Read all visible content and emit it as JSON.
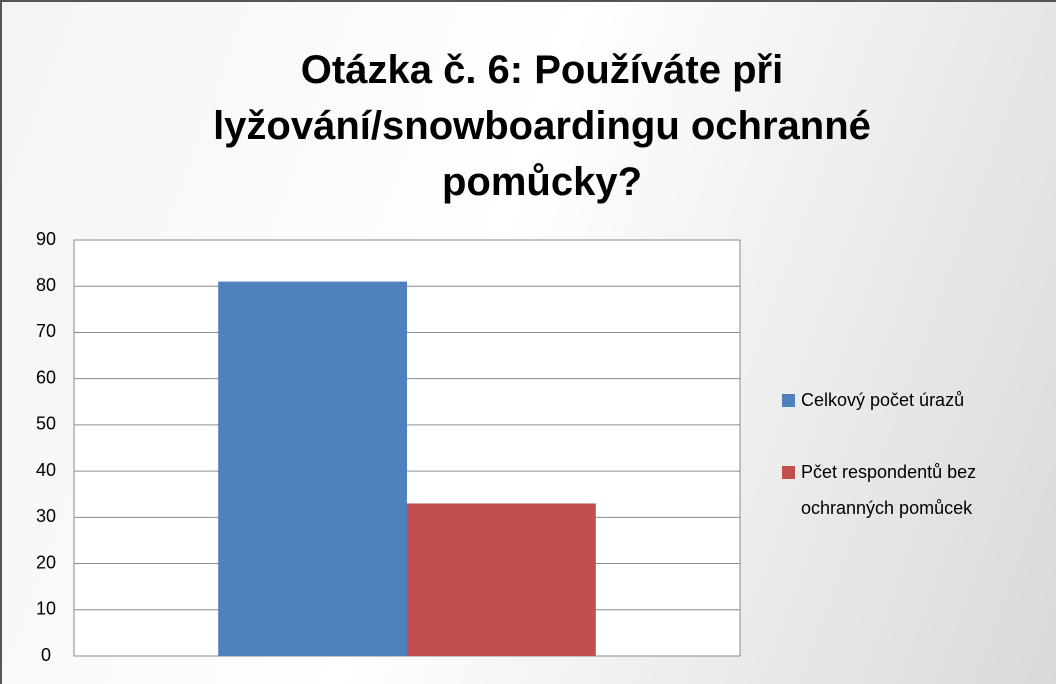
{
  "chart_data": {
    "type": "bar",
    "title": "Otázka č. 6: Používáte při lyžování/snowboardingu ochranné pomůcky?",
    "categories": [
      null
    ],
    "series": [
      {
        "name": "Celkový počet úrazů",
        "color": "#4f81bd",
        "values": [
          81
        ]
      },
      {
        "name": "Pčet respondentů bez ochranných pomůcek",
        "color": "#c0504d",
        "values": [
          33
        ]
      }
    ],
    "ylim": [
      0,
      90
    ],
    "yticks": [
      0,
      10,
      20,
      30,
      40,
      50,
      60,
      70,
      80,
      90
    ],
    "grid": true,
    "legend": "right"
  }
}
